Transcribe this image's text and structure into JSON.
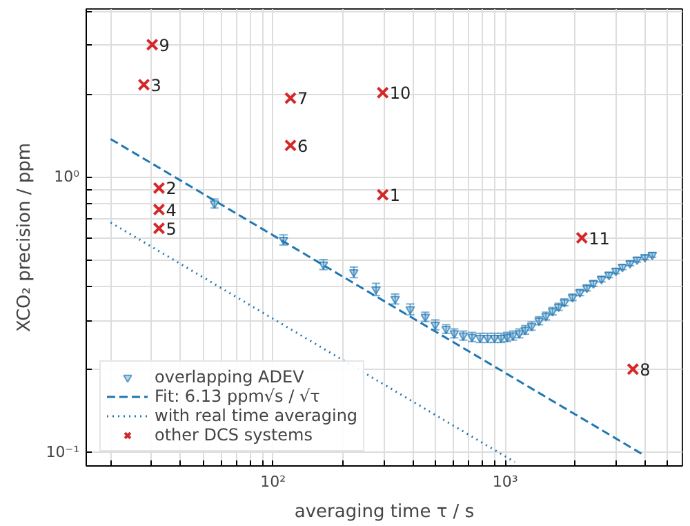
{
  "chart_data": {
    "type": "scatter",
    "xlabel": "averaging time τ / s",
    "ylabel": "XCO₂ precision / ppm",
    "log": "xy",
    "grid": true,
    "legend": "bottom left",
    "xlim": [
      15.7,
      5800
    ],
    "ylim": [
      0.089,
      4.07
    ],
    "xticks": [
      {
        "value": 20,
        "label": null
      },
      {
        "value": 30,
        "label": null
      },
      {
        "value": 40,
        "label": null
      },
      {
        "value": 50,
        "label": null
      },
      {
        "value": 60,
        "label": null
      },
      {
        "value": 70,
        "label": null
      },
      {
        "value": 80,
        "label": null
      },
      {
        "value": 90,
        "label": null
      },
      {
        "value": 100,
        "label": "10²"
      },
      {
        "value": 200,
        "label": null
      },
      {
        "value": 300,
        "label": null
      },
      {
        "value": 400,
        "label": null
      },
      {
        "value": 500,
        "label": null
      },
      {
        "value": 600,
        "label": null
      },
      {
        "value": 700,
        "label": null
      },
      {
        "value": 800,
        "label": null
      },
      {
        "value": 900,
        "label": null
      },
      {
        "value": 1000,
        "label": "10³"
      },
      {
        "value": 2000,
        "label": null
      },
      {
        "value": 3000,
        "label": null
      },
      {
        "value": 4000,
        "label": null
      },
      {
        "value": 5000,
        "label": null
      }
    ],
    "yticks": [
      {
        "value": 0.1,
        "label": "10⁻¹"
      },
      {
        "value": 0.2,
        "label": null
      },
      {
        "value": 0.3,
        "label": null
      },
      {
        "value": 0.4,
        "label": null
      },
      {
        "value": 0.5,
        "label": null
      },
      {
        "value": 0.6,
        "label": null
      },
      {
        "value": 0.7,
        "label": null
      },
      {
        "value": 0.8,
        "label": null
      },
      {
        "value": 0.9,
        "label": null
      },
      {
        "value": 1,
        "label": "10⁰"
      },
      {
        "value": 2,
        "label": null
      },
      {
        "value": 3,
        "label": null
      },
      {
        "value": 4,
        "label": null
      }
    ],
    "series": [
      {
        "name": "overlapping ADEV",
        "marker": "triangle",
        "color": "#1f77b4",
        "x": [
          56,
          111,
          165,
          223,
          278,
          336,
          390,
          453,
          500,
          557,
          604,
          660,
          720,
          780,
          840,
          900,
          960,
          1020,
          1080,
          1150,
          1220,
          1300,
          1400,
          1500,
          1600,
          1700,
          1800,
          1950,
          2100,
          2250,
          2400,
          2600,
          2800,
          3000,
          3200,
          3450,
          3700,
          4000,
          4300
        ],
        "values": [
          0.8,
          0.59,
          0.48,
          0.45,
          0.39,
          0.36,
          0.33,
          0.31,
          0.29,
          0.28,
          0.27,
          0.265,
          0.262,
          0.26,
          0.26,
          0.26,
          0.26,
          0.262,
          0.265,
          0.27,
          0.278,
          0.287,
          0.3,
          0.312,
          0.325,
          0.337,
          0.35,
          0.365,
          0.38,
          0.395,
          0.41,
          0.425,
          0.44,
          0.455,
          0.47,
          0.485,
          0.5,
          0.51,
          0.52
        ],
        "errors": [
          0.03,
          0.025,
          0.02,
          0.02,
          0.02,
          0.015,
          0.015,
          0.012,
          0.012,
          0.01,
          0.01,
          0.01,
          0.01,
          0.01,
          0.01,
          0.01,
          0.01,
          0.01,
          0.01,
          0.01,
          0.01,
          0.01,
          0.01,
          0.01,
          0.01,
          0.01,
          0.01,
          0.01,
          0.01,
          0.01,
          0.01,
          0.01,
          0.01,
          0.01,
          0.01,
          0.01,
          0.01,
          0.01,
          0.01
        ]
      },
      {
        "name": "Fit: 6.13 ppm√s / √τ",
        "type": "line",
        "line_style": "dashed",
        "color": "#1f77b4",
        "x": [
          20,
          3900
        ],
        "values": [
          1.371,
          0.0982
        ]
      },
      {
        "name": "with real time averaging",
        "type": "line",
        "line_style": "dotted",
        "color": "#1f77b4",
        "x": [
          20,
          1100
        ],
        "values": [
          0.682,
          0.092
        ]
      },
      {
        "name": "other DCS systems",
        "marker": "cross",
        "color": "#d62728",
        "x": [
          297,
          32.3,
          27.8,
          32.3,
          32.3,
          119,
          119,
          3550,
          30.2,
          297,
          2140
        ],
        "values": [
          0.86,
          0.91,
          2.16,
          0.76,
          0.65,
          1.3,
          1.93,
          0.2,
          3.02,
          2.02,
          0.6
        ]
      }
    ],
    "annotations": [
      {
        "text": "1",
        "x": 297,
        "y": 0.86
      },
      {
        "text": "2",
        "x": 32.3,
        "y": 0.91
      },
      {
        "text": "3",
        "x": 27.8,
        "y": 2.16
      },
      {
        "text": "4",
        "x": 32.3,
        "y": 0.76
      },
      {
        "text": "5",
        "x": 32.3,
        "y": 0.65
      },
      {
        "text": "6",
        "x": 119,
        "y": 1.3
      },
      {
        "text": "7",
        "x": 119,
        "y": 1.93
      },
      {
        "text": "8",
        "x": 3550,
        "y": 0.2
      },
      {
        "text": "9",
        "x": 30.2,
        "y": 3.02
      },
      {
        "text": "10",
        "x": 297,
        "y": 2.02
      },
      {
        "text": "11",
        "x": 2140,
        "y": 0.6
      }
    ]
  }
}
